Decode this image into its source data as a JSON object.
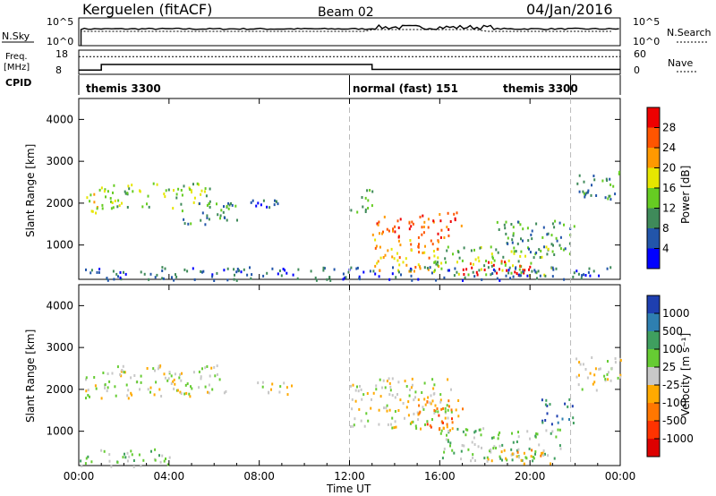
{
  "header": {
    "radar": "Kerguelen (fitACF)",
    "beam": "Beam 02",
    "date": "04/Jan/2016"
  },
  "panels": {
    "nsky_label": "N.Sky",
    "nsearch_label": "N.Search",
    "freq_label_1": "Freq.",
    "freq_label_2": "[MHz]",
    "nave_label": "Nave",
    "cpid_label": "CPID",
    "nsky_ticks": [
      "10^5",
      "10^0"
    ],
    "nsearch_ticks": [
      "10^5",
      "10^0"
    ],
    "freq_ticks": [
      "18",
      "8"
    ],
    "nave_ticks": [
      "60",
      "0"
    ]
  },
  "cpid_segments": [
    {
      "label": "themis 3300",
      "start": 0.0,
      "end": 12.0
    },
    {
      "label": "normal (fast) 151",
      "start": 12.0,
      "end": 21.8
    },
    {
      "label": "themis 3300",
      "start": 17.2,
      "end": 21.8
    }
  ],
  "power_panel": {
    "ylabel": "Slant Range [km]",
    "yticks": [
      "1000",
      "2000",
      "3000",
      "4000"
    ],
    "colorbar_label": "Power [dB]",
    "colorbar_ticks": [
      "4",
      "8",
      "12",
      "16",
      "20",
      "24",
      "28"
    ],
    "colors": [
      "#0000ff",
      "#2255aa",
      "#3f8a5a",
      "#66cc22",
      "#e6e600",
      "#ff9900",
      "#ff5500",
      "#ee0000"
    ]
  },
  "velocity_panel": {
    "ylabel": "Slant Range [km]",
    "yticks": [
      "1000",
      "2000",
      "3000",
      "4000"
    ],
    "colorbar_label": "Velocity [m s⁻¹]",
    "colorbar_ticks": [
      "1000",
      "500",
      "100",
      "25",
      "-25",
      "-100",
      "-500",
      "-1000"
    ],
    "colors": [
      "#1e3fb0",
      "#2e7fb0",
      "#3f9f5f",
      "#66cc33",
      "#c8c8c8",
      "#ffaa00",
      "#ff7700",
      "#ff3300",
      "#dd0000"
    ]
  },
  "xaxis": {
    "label": "Time UT",
    "ticks": [
      "00:00",
      "04:00",
      "08:00",
      "12:00",
      "16:00",
      "20:00",
      "00:00"
    ]
  },
  "chart_data": {
    "type": "heatmap",
    "x_range_hours": [
      0,
      24
    ],
    "y_range_km": [
      180,
      4500
    ],
    "frequency_mhz": [
      {
        "start": 0,
        "end": 1.0,
        "value": 9.5
      },
      {
        "start": 1.0,
        "end": 13.0,
        "value": 12.0
      },
      {
        "start": 13.0,
        "end": 24,
        "value": 9.8
      }
    ],
    "nave": {
      "value": 45
    },
    "scatter_regions": [
      {
        "panel": "power",
        "t0": 0.2,
        "t1": 1.0,
        "r0": 1700,
        "r1": 2400,
        "level": 4
      },
      {
        "panel": "power",
        "t0": 1.0,
        "t1": 6.0,
        "r0": 1900,
        "r1": 2500,
        "level": 3
      },
      {
        "panel": "power",
        "t0": 4.5,
        "t1": 7.0,
        "r0": 1500,
        "r1": 2100,
        "level": 2
      },
      {
        "panel": "power",
        "t0": 7.5,
        "t1": 9.5,
        "r0": 1900,
        "r1": 2200,
        "level": 1
      },
      {
        "panel": "power",
        "t0": 12.0,
        "t1": 13.0,
        "r0": 1800,
        "r1": 2400,
        "level": 2
      },
      {
        "panel": "power",
        "t0": 13.0,
        "t1": 17.0,
        "r0": 1200,
        "r1": 1800,
        "level": 6
      },
      {
        "panel": "power",
        "t0": 13.0,
        "t1": 16.0,
        "r0": 400,
        "r1": 1200,
        "level": 5
      },
      {
        "panel": "power",
        "t0": 15.5,
        "t1": 21.0,
        "r0": 300,
        "r1": 1000,
        "level": 3
      },
      {
        "panel": "power",
        "t0": 17.0,
        "t1": 20.0,
        "r0": 280,
        "r1": 650,
        "level": 7
      },
      {
        "panel": "power",
        "t0": 18.5,
        "t1": 22.0,
        "r0": 800,
        "r1": 1600,
        "level": 2
      },
      {
        "panel": "power",
        "t0": 22.0,
        "t1": 24.0,
        "r0": 2100,
        "r1": 2800,
        "level": 2
      },
      {
        "panel": "power",
        "t0": 0.0,
        "t1": 24.0,
        "r0": 180,
        "r1": 500,
        "level": 1
      },
      {
        "panel": "velocity",
        "t0": 0.2,
        "t1": 1.0,
        "r0": 1800,
        "r1": 2400,
        "level": 4
      },
      {
        "panel": "velocity",
        "t0": 1.0,
        "t1": 6.5,
        "r0": 1800,
        "r1": 2600,
        "level": 4
      },
      {
        "panel": "velocity",
        "t0": 7.5,
        "t1": 9.5,
        "r0": 1900,
        "r1": 2200,
        "level": 4
      },
      {
        "panel": "velocity",
        "t0": 12.0,
        "t1": 16.5,
        "r0": 1100,
        "r1": 2300,
        "level": 4
      },
      {
        "panel": "velocity",
        "t0": 15.0,
        "t1": 17.0,
        "r0": 1000,
        "r1": 1800,
        "level": 6
      },
      {
        "panel": "velocity",
        "t0": 16.0,
        "t1": 21.5,
        "r0": 300,
        "r1": 1100,
        "level": 3
      },
      {
        "panel": "velocity",
        "t0": 18.0,
        "t1": 21.0,
        "r0": 250,
        "r1": 600,
        "level": 5
      },
      {
        "panel": "velocity",
        "t0": 20.5,
        "t1": 22.0,
        "r0": 1200,
        "r1": 1800,
        "level": 1
      },
      {
        "panel": "velocity",
        "t0": 0.0,
        "t1": 4.0,
        "r0": 180,
        "r1": 600,
        "level": 3
      },
      {
        "panel": "velocity",
        "t0": 22.0,
        "t1": 24.0,
        "r0": 2000,
        "r1": 2800,
        "level": 4
      }
    ]
  }
}
